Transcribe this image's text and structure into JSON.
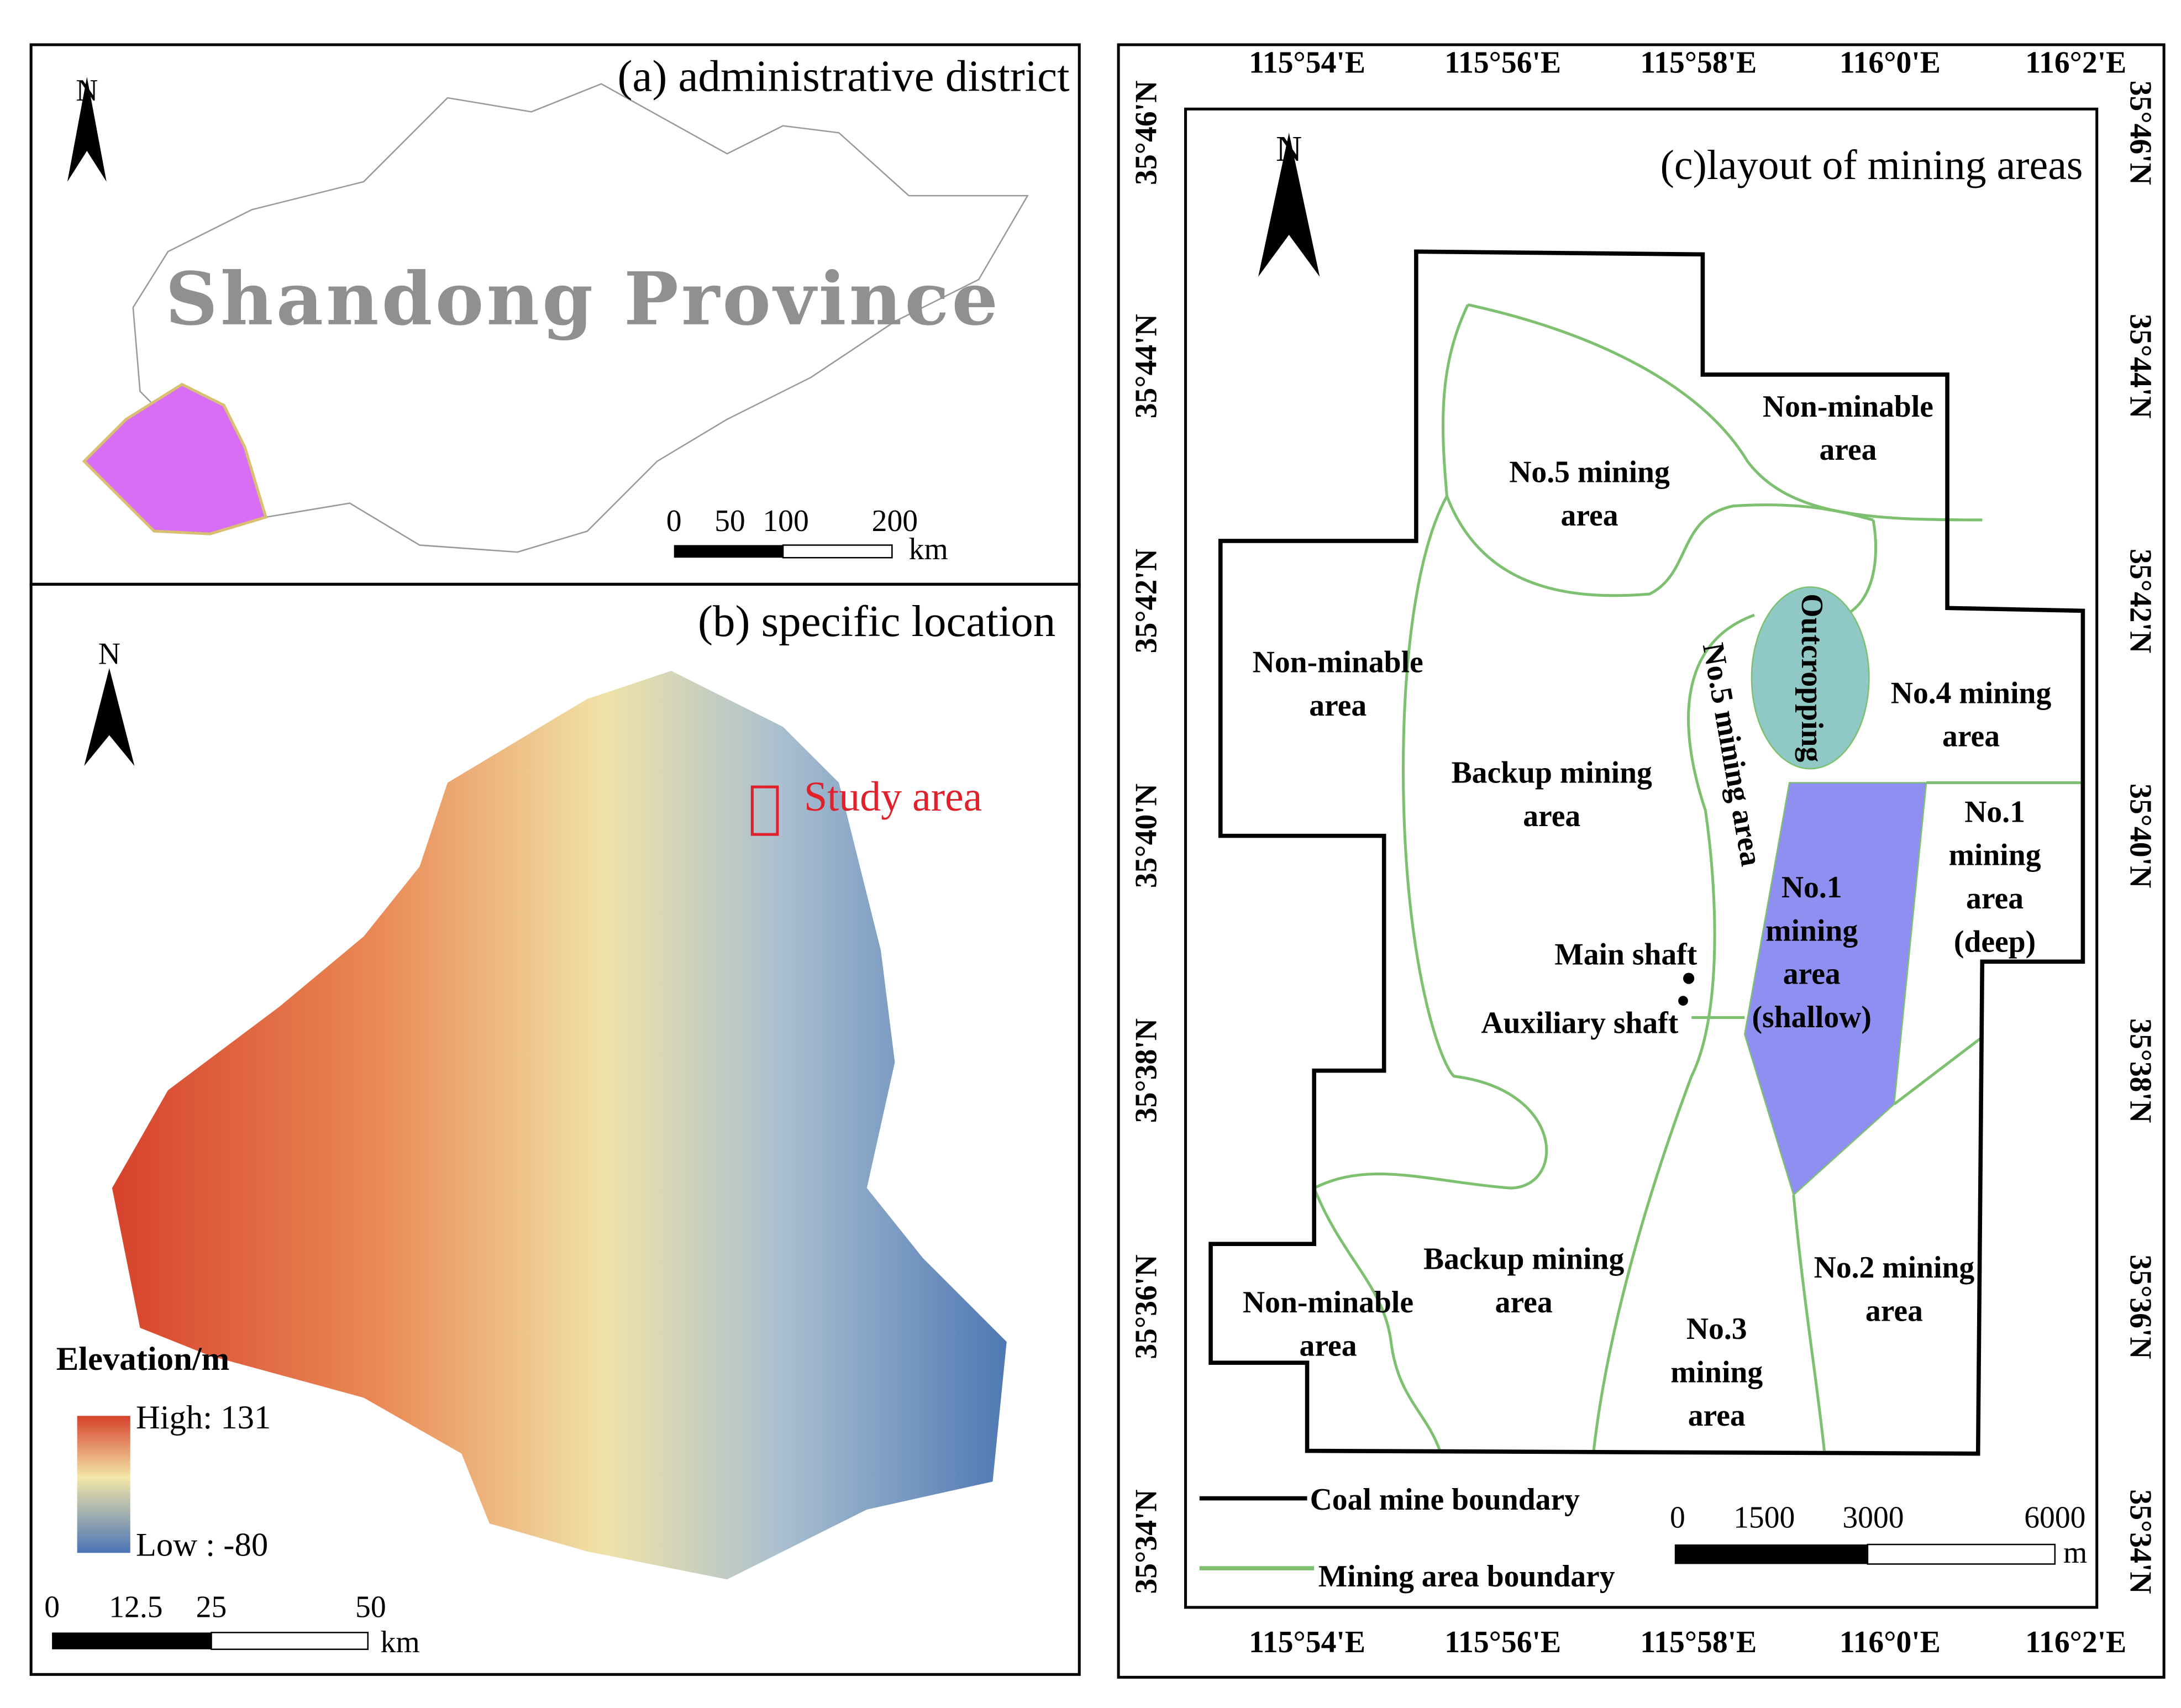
{
  "panels": [
    {
      "title": "(a) administrative district",
      "north": "N",
      "label": "Shandong Province",
      "scale": {
        "labels": [
          "0",
          "50",
          "100",
          "200"
        ],
        "unit": "km"
      }
    },
    {
      "title": "(b) specific location",
      "north": "N",
      "annotation": "Study area",
      "legend": {
        "title": "Elevation/m",
        "high": "High: 131",
        "low": "Low : -80"
      },
      "scale": {
        "labels": [
          "0",
          "12.5",
          "25",
          "50"
        ],
        "unit": "km"
      }
    },
    {
      "title": "(c)layout of mining areas",
      "north": "N",
      "lon_labels": [
        "115°54'E",
        "115°56'E",
        "115°58'E",
        "116°0'E",
        "116°2'E"
      ],
      "lat_labels": [
        "35°34'N",
        "35°36'N",
        "35°38'N",
        "35°40'N",
        "35°42'N",
        "35°44'N",
        "35°46'N"
      ],
      "areas": [
        {
          "lines": [
            "Non-minable",
            "area"
          ]
        },
        {
          "lines": [
            "No.5 mining",
            "area"
          ]
        },
        {
          "lines": [
            "Non-minable",
            "area"
          ]
        },
        {
          "lines": [
            "Backup mining",
            "area"
          ]
        },
        {
          "lines": [
            "Outcropping"
          ]
        },
        {
          "lines": [
            "No.5 mining area"
          ]
        },
        {
          "lines": [
            "No.4 mining",
            "area"
          ]
        },
        {
          "lines": [
            "No.1",
            "mining",
            "area",
            "(deep)"
          ]
        },
        {
          "lines": [
            "No.1",
            "mining",
            "area",
            "(shallow)"
          ]
        },
        {
          "lines": [
            "Main shaft"
          ]
        },
        {
          "lines": [
            "Auxiliary shaft"
          ]
        },
        {
          "lines": [
            "Backup mining",
            "area"
          ]
        },
        {
          "lines": [
            "Non-minable",
            "area"
          ]
        },
        {
          "lines": [
            "No.3",
            "mining",
            "area"
          ]
        },
        {
          "lines": [
            "No.2 mining",
            "area"
          ]
        }
      ],
      "legend": [
        {
          "label": "Coal mine boundary"
        },
        {
          "label": "Mining area boundary"
        }
      ],
      "scale": {
        "labels": [
          "0",
          "1500",
          "3000",
          "6000"
        ],
        "unit": "m"
      }
    }
  ]
}
